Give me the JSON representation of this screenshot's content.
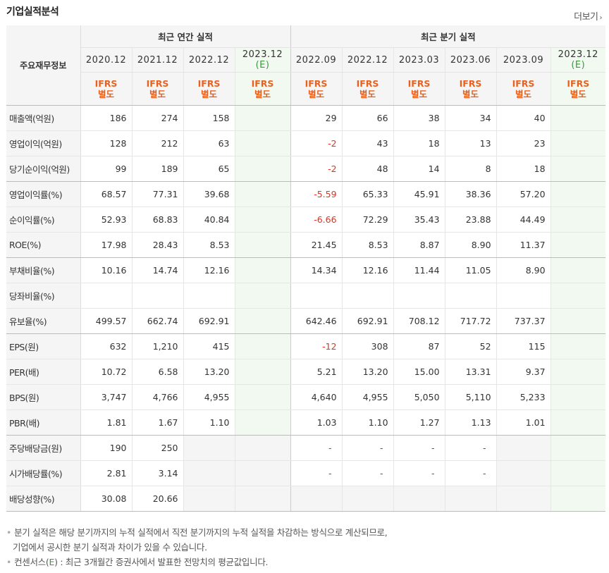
{
  "title": "기업실적분석",
  "more_label": "더보기",
  "header": {
    "label_col": "주요재무정보",
    "annual_group": "최근 연간 실적",
    "quarter_group": "최근 분기 실적",
    "ifrs_line1": "IFRS",
    "ifrs_line2": "별도",
    "estimate_mark": "(E)",
    "annual_periods": [
      "2020.12",
      "2021.12",
      "2022.12",
      "2023.12"
    ],
    "quarter_periods": [
      "2022.09",
      "2022.12",
      "2023.03",
      "2023.06",
      "2023.09",
      "2023.12"
    ]
  },
  "rows": [
    {
      "label": "매출액(억원)",
      "annual": [
        "186",
        "274",
        "158",
        ""
      ],
      "quarter": [
        "29",
        "66",
        "38",
        "34",
        "40",
        ""
      ]
    },
    {
      "label": "영업이익(억원)",
      "annual": [
        "128",
        "212",
        "63",
        ""
      ],
      "quarter": [
        "-2",
        "43",
        "18",
        "13",
        "23",
        ""
      ]
    },
    {
      "label": "당기순이익(억원)",
      "annual": [
        "99",
        "189",
        "65",
        ""
      ],
      "quarter": [
        "-2",
        "48",
        "14",
        "8",
        "18",
        ""
      ]
    },
    {
      "label": "영업이익률(%)",
      "annual": [
        "68.57",
        "77.31",
        "39.68",
        ""
      ],
      "quarter": [
        "-5.59",
        "65.33",
        "45.91",
        "38.36",
        "57.20",
        ""
      ]
    },
    {
      "label": "순이익률(%)",
      "annual": [
        "52.93",
        "68.83",
        "40.84",
        ""
      ],
      "quarter": [
        "-6.66",
        "72.29",
        "35.43",
        "23.88",
        "44.49",
        ""
      ]
    },
    {
      "label": "ROE(%)",
      "annual": [
        "17.98",
        "28.43",
        "8.53",
        ""
      ],
      "quarter": [
        "21.45",
        "8.53",
        "8.87",
        "8.90",
        "11.37",
        ""
      ]
    },
    {
      "label": "부채비율(%)",
      "annual": [
        "10.16",
        "14.74",
        "12.16",
        ""
      ],
      "quarter": [
        "14.34",
        "12.16",
        "11.44",
        "11.05",
        "8.90",
        ""
      ]
    },
    {
      "label": "당좌비율(%)",
      "annual": [
        "",
        "",
        "",
        ""
      ],
      "quarter": [
        "",
        "",
        "",
        "",
        "",
        ""
      ]
    },
    {
      "label": "유보율(%)",
      "annual": [
        "499.57",
        "662.74",
        "692.91",
        ""
      ],
      "quarter": [
        "642.46",
        "692.91",
        "708.12",
        "717.72",
        "737.37",
        ""
      ]
    },
    {
      "label": "EPS(원)",
      "annual": [
        "632",
        "1,210",
        "415",
        ""
      ],
      "quarter": [
        "-12",
        "308",
        "87",
        "52",
        "115",
        ""
      ]
    },
    {
      "label": "PER(배)",
      "annual": [
        "10.72",
        "6.58",
        "13.20",
        ""
      ],
      "quarter": [
        "5.21",
        "13.20",
        "15.00",
        "13.31",
        "9.37",
        ""
      ]
    },
    {
      "label": "BPS(원)",
      "annual": [
        "3,747",
        "4,766",
        "4,955",
        ""
      ],
      "quarter": [
        "4,640",
        "4,955",
        "5,050",
        "5,110",
        "5,233",
        ""
      ]
    },
    {
      "label": "PBR(배)",
      "annual": [
        "1.81",
        "1.67",
        "1.10",
        ""
      ],
      "quarter": [
        "1.03",
        "1.10",
        "1.27",
        "1.13",
        "1.01",
        ""
      ]
    },
    {
      "label": "주당배당금(원)",
      "annual": [
        "190",
        "250",
        "",
        ""
      ],
      "quarter": [
        "-",
        "-",
        "-",
        "-",
        "",
        ""
      ]
    },
    {
      "label": "시가배당률(%)",
      "annual": [
        "2.81",
        "3.14",
        "",
        ""
      ],
      "quarter": [
        "-",
        "-",
        "-",
        "-",
        "",
        ""
      ]
    },
    {
      "label": "배당성향(%)",
      "annual": [
        "30.08",
        "20.66",
        "",
        ""
      ],
      "quarter": [
        "",
        "",
        "",
        "",
        "",
        ""
      ]
    }
  ],
  "notes": {
    "line1": "분기 실적은 해당 분기까지의 누적 실적에서 직전 분기까지의 누적 실적을 차감하는 방식으로 계산되므로,",
    "line2": "기업에서 공시한 분기 실적과 차이가 있을 수 있습니다.",
    "line3_prefix": "컨센서스(",
    "line3_e": "E",
    "line3_suffix": ") : 최근 3개월간 증권사에서 발표한 전망치의 평균값입니다."
  },
  "colors": {
    "ifrs": "#e8611e",
    "negative": "#e8301a",
    "estimate": "#3a9a3a",
    "estimate_bg": "#f1f9f1"
  }
}
